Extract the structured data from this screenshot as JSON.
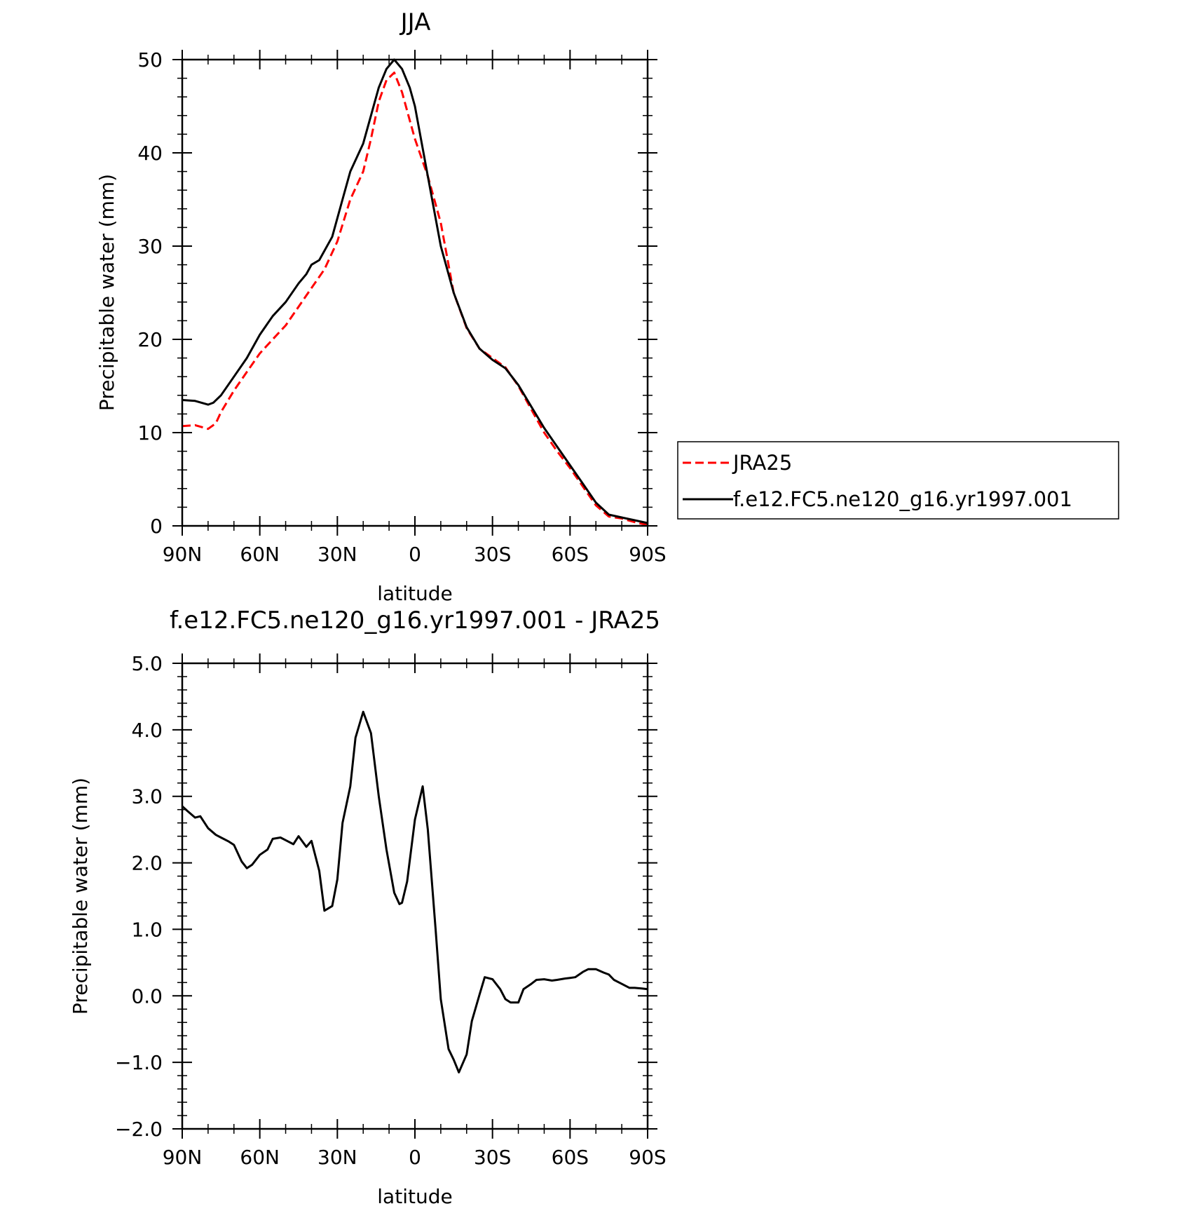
{
  "chart_data": [
    {
      "type": "line",
      "title": "JJA",
      "xlabel": "latitude",
      "ylabel": "Precipitable water (mm)",
      "xlim": [
        90,
        -90
      ],
      "ylim": [
        0,
        50
      ],
      "xticks": [
        90,
        60,
        30,
        0,
        -30,
        -60,
        -90
      ],
      "xtick_labels": [
        "90N",
        "60N",
        "30N",
        "0",
        "30S",
        "60S",
        "90S"
      ],
      "yticks": [
        0,
        10,
        20,
        30,
        40,
        50
      ],
      "ytick_labels": [
        "0",
        "10",
        "20",
        "30",
        "40",
        "50"
      ],
      "grid": false,
      "legend_position": "right, outside plot",
      "series": [
        {
          "name": "JRA25",
          "color": "#ff0000",
          "style": "dashed",
          "x": [
            90,
            85,
            80,
            77,
            75,
            70,
            65,
            60,
            55,
            50,
            45,
            40,
            35,
            30,
            25,
            20,
            17,
            14,
            11,
            8,
            5,
            2,
            0,
            -5,
            -10,
            -15,
            -20,
            -25,
            -30,
            -35,
            -40,
            -45,
            -50,
            -55,
            -60,
            -65,
            -70,
            -75,
            -80,
            -85,
            -90
          ],
          "values": [
            10.7,
            10.8,
            10.4,
            11.0,
            12.2,
            14.5,
            16.5,
            18.5,
            20.0,
            21.5,
            23.5,
            25.5,
            27.5,
            30.5,
            35.0,
            38.0,
            41.5,
            45.5,
            47.8,
            48.6,
            46.5,
            43.5,
            41.5,
            37.5,
            32.5,
            25.0,
            21.2,
            19.0,
            18.0,
            17.0,
            15.0,
            12.5,
            10.0,
            8.0,
            6.2,
            4.2,
            2.2,
            1.0,
            0.8,
            0.4,
            0.1
          ]
        },
        {
          "name": "f.e12.FC5.ne120_g16.yr1997.001",
          "color": "#000000",
          "style": "solid",
          "x": [
            90,
            85,
            80,
            78,
            75,
            70,
            65,
            60,
            55,
            50,
            45,
            42,
            40,
            37,
            32,
            28,
            25,
            20,
            17,
            14,
            11,
            8,
            5,
            2,
            0,
            -5,
            -10,
            -15,
            -20,
            -25,
            -30,
            -35,
            -40,
            -45,
            -50,
            -55,
            -60,
            -65,
            -70,
            -75,
            -80,
            -85,
            -90
          ],
          "values": [
            13.5,
            13.4,
            13.0,
            13.2,
            14.0,
            16.0,
            18.0,
            20.5,
            22.5,
            24.0,
            26.0,
            27.0,
            28.0,
            28.5,
            31.0,
            35.0,
            38.0,
            41.0,
            44.0,
            47.0,
            49.0,
            50.0,
            49.0,
            47.0,
            45.0,
            37.5,
            30.0,
            25.0,
            21.3,
            19.0,
            17.8,
            16.9,
            15.1,
            12.8,
            10.5,
            8.5,
            6.5,
            4.5,
            2.5,
            1.2,
            0.9,
            0.6,
            0.3
          ]
        }
      ]
    },
    {
      "type": "line",
      "title": "f.e12.FC5.ne120_g16.yr1997.001 - JRA25",
      "xlabel": "latitude",
      "ylabel": "Precipitable water (mm)",
      "xlim": [
        90,
        -90
      ],
      "ylim": [
        -2.0,
        5.0
      ],
      "xticks": [
        90,
        60,
        30,
        0,
        -30,
        -60,
        -90
      ],
      "xtick_labels": [
        "90N",
        "60N",
        "30N",
        "0",
        "30S",
        "60S",
        "90S"
      ],
      "yticks": [
        -2.0,
        -1.0,
        0.0,
        1.0,
        2.0,
        3.0,
        4.0,
        5.0
      ],
      "ytick_labels": [
        "−2.0",
        "−1.0",
        "0.0",
        "1.0",
        "2.0",
        "3.0",
        "4.0",
        "5.0"
      ],
      "grid": false,
      "series": [
        {
          "color": "#000000",
          "style": "solid",
          "x": [
            90,
            88,
            85,
            83,
            80,
            77,
            75,
            72,
            70,
            67,
            65,
            63,
            60,
            57,
            55,
            52,
            50,
            47,
            45,
            42,
            40,
            37,
            35,
            32,
            30,
            28,
            25,
            23,
            20,
            17,
            14,
            11,
            8,
            6,
            5,
            3,
            0,
            -3,
            -5,
            -8,
            -10,
            -13,
            -15,
            -17,
            -20,
            -22,
            -25,
            -27,
            -30,
            -33,
            -35,
            -37,
            -40,
            -42,
            -45,
            -47,
            -50,
            -53,
            -55,
            -58,
            -60,
            -62,
            -65,
            -67,
            -70,
            -73,
            -75,
            -77,
            -80,
            -83,
            -85,
            -88,
            -90
          ],
          "values": [
            2.85,
            2.78,
            2.68,
            2.7,
            2.52,
            2.42,
            2.38,
            2.32,
            2.27,
            2.02,
            1.92,
            1.97,
            2.12,
            2.2,
            2.36,
            2.38,
            2.34,
            2.28,
            2.4,
            2.24,
            2.33,
            1.88,
            1.28,
            1.35,
            1.75,
            2.6,
            3.15,
            3.88,
            4.27,
            3.95,
            3.0,
            2.2,
            1.55,
            1.38,
            1.4,
            1.72,
            2.65,
            3.15,
            2.5,
            1.0,
            -0.05,
            -0.8,
            -0.96,
            -1.15,
            -0.88,
            -0.38,
            0.02,
            0.28,
            0.25,
            0.1,
            -0.05,
            -0.1,
            -0.1,
            0.1,
            0.18,
            0.24,
            0.25,
            0.23,
            0.24,
            0.26,
            0.27,
            0.28,
            0.36,
            0.4,
            0.4,
            0.35,
            0.32,
            0.24,
            0.18,
            0.12,
            0.12,
            0.11,
            0.1
          ]
        }
      ]
    }
  ]
}
